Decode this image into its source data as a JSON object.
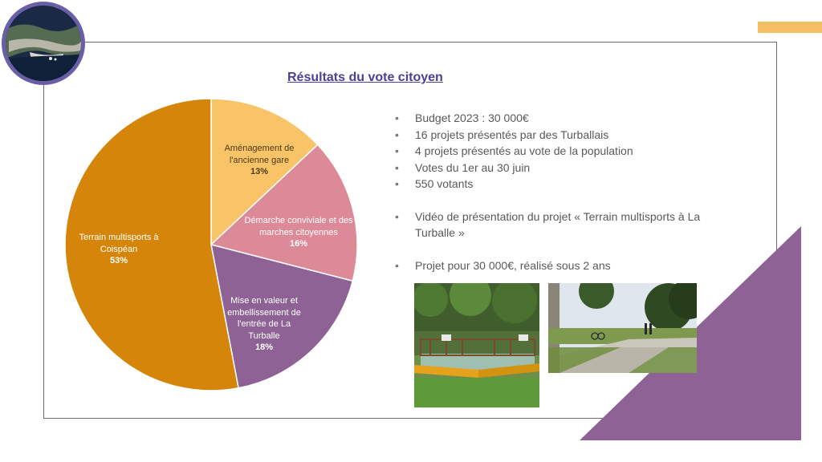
{
  "slide": {
    "title": "Résultats du vote citoyen",
    "colors": {
      "title": "#4b3f96",
      "frame": "#6b6b6b",
      "accent_bar": "#f5c061",
      "triangle": "#8e6294",
      "logo_ring": "#6a5ea8"
    }
  },
  "chart_data": {
    "type": "pie",
    "slices": [
      {
        "label": "Aménagement de l'ancienne gare",
        "label_lines": [
          "Aménagement de",
          "l'ancienne gare"
        ],
        "percent_label": "13%",
        "value": 13,
        "color": "#f9c467"
      },
      {
        "label": "Démarche conviviale et des marches citoyennes",
        "label_lines": [
          "Démarche conviviale et des",
          "marches citoyennes"
        ],
        "percent_label": "16%",
        "value": 16,
        "color": "#dc8a97"
      },
      {
        "label": "Mise en valeur et embellissement de l'entrée de La Turballe",
        "label_lines": [
          "Mise en valeur et",
          "embellissement de",
          "l'entrée de La",
          "Turballe"
        ],
        "percent_label": "18%",
        "value": 18,
        "color": "#8e6294"
      },
      {
        "label": "Terrain multisports à Coispéan",
        "label_lines": [
          "Terrain multisports à",
          "Coispéan"
        ],
        "percent_label": "53%",
        "value": 53,
        "color": "#d4850a"
      }
    ]
  },
  "bullets": [
    "Budget 2023 : 30 000€",
    "16 projets présentés par des Turballais",
    "4 projets présentés au vote de la population",
    "Votes du 1er au 30 juin",
    "550 votants",
    "Vidéo de présentation du projet « Terrain multisports à La Turballe »",
    "Projet pour 30 000€, réalisé sous 2 ans"
  ],
  "images": {
    "logo": "aerial-coastal-town-photo",
    "photo_1": "multisport-court-photo",
    "photo_2": "park-path-cyclists-photo"
  }
}
